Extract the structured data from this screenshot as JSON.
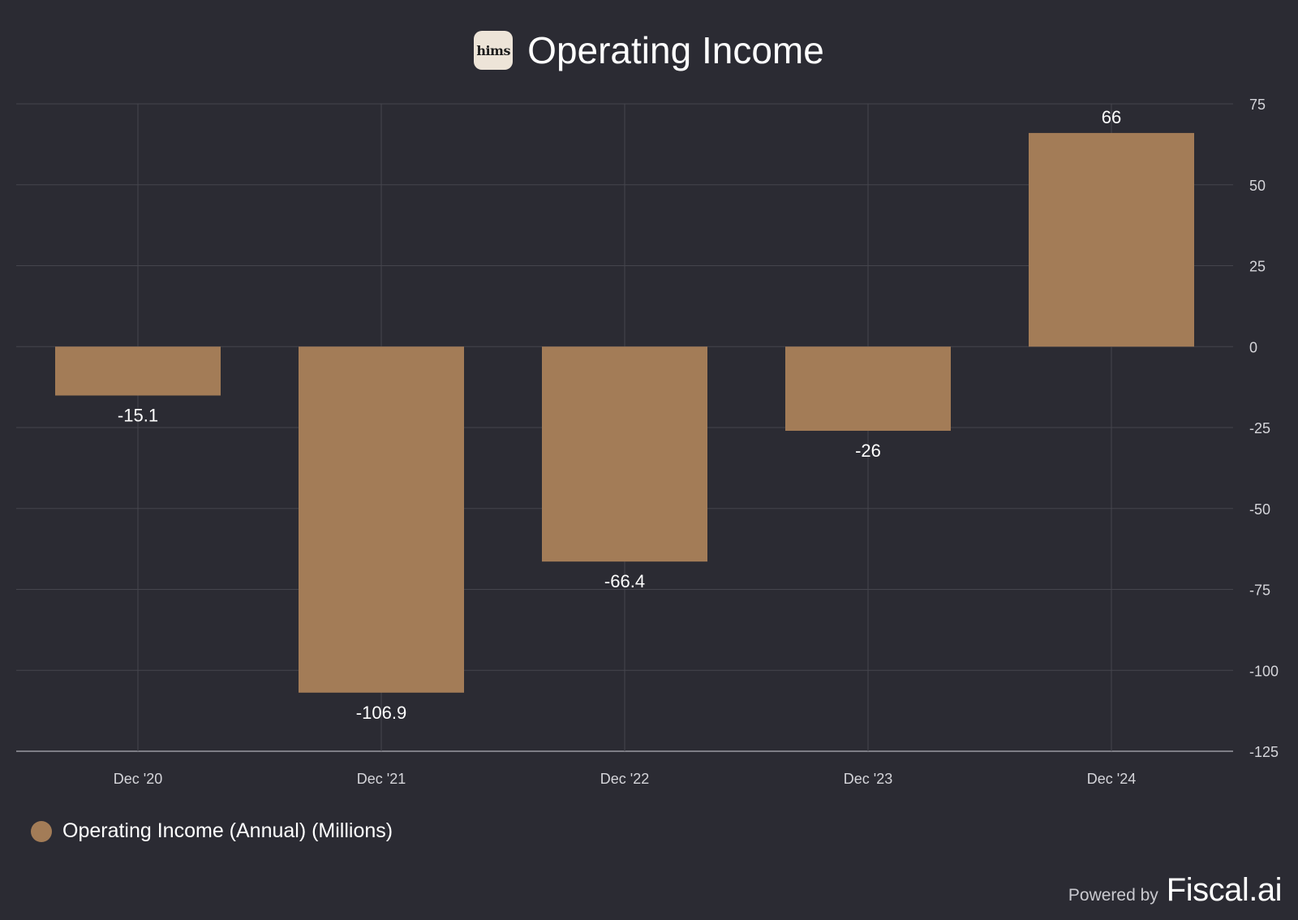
{
  "header": {
    "logo_text": "hims",
    "title": "Operating Income"
  },
  "chart_data": {
    "type": "bar",
    "categories": [
      "Dec '20",
      "Dec '21",
      "Dec '22",
      "Dec '23",
      "Dec '24"
    ],
    "series": [
      {
        "name": "Operating Income (Annual) (Millions)",
        "values": [
          -15.1,
          -106.9,
          -66.4,
          -26,
          66
        ],
        "labels": [
          "-15.1",
          "-106.9",
          "-66.4",
          "-26",
          "66"
        ],
        "color": "#a37c57"
      }
    ],
    "ylim": [
      -125,
      75
    ],
    "yticks": [
      75,
      50,
      25,
      0,
      -25,
      -50,
      -75,
      -100,
      -125
    ],
    "y_axis_position": "right",
    "grid": true,
    "legend_position": "bottom-left"
  },
  "footer": {
    "powered_text": "Powered by",
    "brand": "Fiscal.ai"
  },
  "colors": {
    "background": "#2b2b33",
    "bar": "#a37c57",
    "grid": "#45454d",
    "axis_text": "#d5d5da"
  }
}
